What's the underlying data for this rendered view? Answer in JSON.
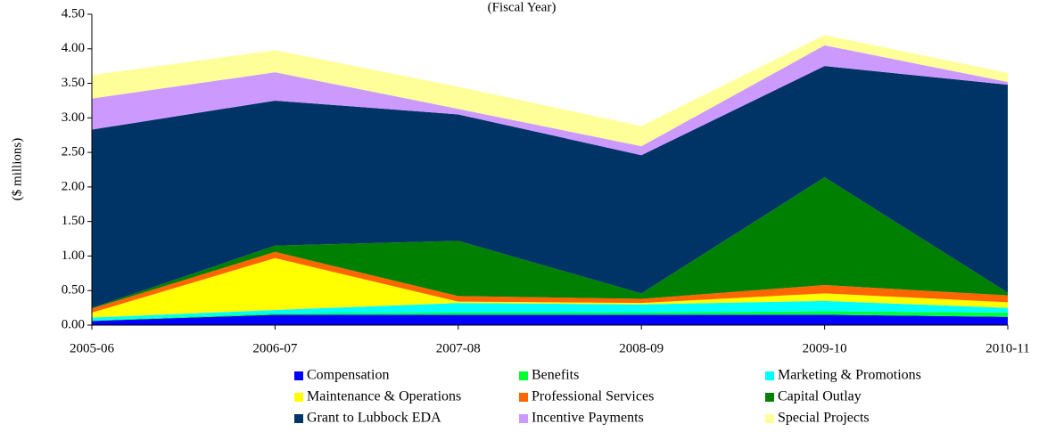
{
  "chart_data": {
    "type": "area",
    "stacked": true,
    "subtitle": "(Fiscal Year)",
    "y_label": "($ millions)",
    "categories": [
      "2005-06",
      "2006-07",
      "2007-08",
      "2008-09",
      "2009-10",
      "2010-11"
    ],
    "ylim": [
      0,
      4.5
    ],
    "yticks": [
      {
        "value": 0,
        "label": "0.00"
      },
      {
        "value": 0.5,
        "label": "0.50"
      },
      {
        "value": 1,
        "label": "1.00"
      },
      {
        "value": 1.5,
        "label": "1.50"
      },
      {
        "value": 2,
        "label": "2.00"
      },
      {
        "value": 2.5,
        "label": "2.50"
      },
      {
        "value": 3,
        "label": "3.00"
      },
      {
        "value": 3.5,
        "label": "3.50"
      },
      {
        "value": 4,
        "label": "4.00"
      },
      {
        "value": 4.5,
        "label": "4.50"
      }
    ],
    "legend": "bottom",
    "series": [
      {
        "name": "Compensation",
        "color": "#0000ff",
        "values": [
          0.06,
          0.15,
          0.15,
          0.15,
          0.15,
          0.12
        ]
      },
      {
        "name": "Benefits",
        "color": "#00ff33",
        "values": [
          0.01,
          0.02,
          0.03,
          0.03,
          0.05,
          0.06
        ]
      },
      {
        "name": "Marketing & Promotions",
        "color": "#00ffff",
        "values": [
          0.04,
          0.05,
          0.14,
          0.12,
          0.15,
          0.07
        ]
      },
      {
        "name": "Maintenance & Operations",
        "color": "#ffff00",
        "values": [
          0.07,
          0.75,
          0.02,
          0.02,
          0.11,
          0.08
        ]
      },
      {
        "name": "Professional Services",
        "color": "#ff6600",
        "values": [
          0.06,
          0.09,
          0.08,
          0.06,
          0.12,
          0.1
        ]
      },
      {
        "name": "Capital Outlay",
        "color": "#008000",
        "values": [
          0.01,
          0.09,
          0.8,
          0.08,
          1.56,
          0.04
        ]
      },
      {
        "name": "Grant to Lubbock EDA",
        "color": "#003366",
        "values": [
          2.58,
          2.1,
          1.83,
          2.0,
          1.61,
          3.01
        ]
      },
      {
        "name": "Incentive Payments",
        "color": "#cc99ff",
        "values": [
          0.45,
          0.41,
          0.08,
          0.13,
          0.3,
          0.04
        ]
      },
      {
        "name": "Special Projects",
        "color": "#ffff99",
        "values": [
          0.34,
          0.32,
          0.32,
          0.29,
          0.15,
          0.13
        ]
      }
    ]
  }
}
